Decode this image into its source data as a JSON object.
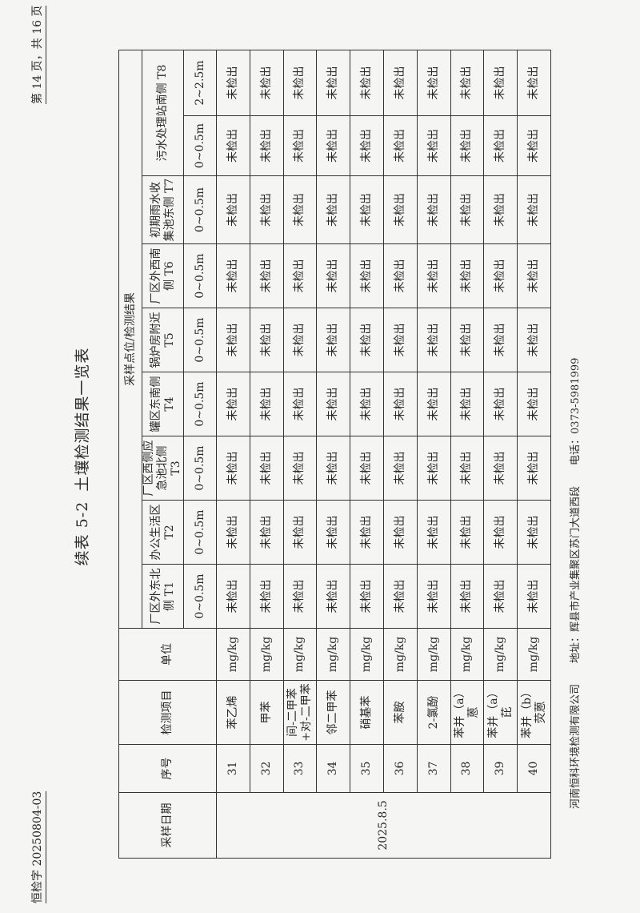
{
  "header": {
    "doc_number": "恒检字 20250804-03",
    "page_info": "第 14 页，共 16 页"
  },
  "title": {
    "prefix": "续表 5-2",
    "text": "土壤检测结果一览表"
  },
  "table": {
    "col_date": "采样日期",
    "col_seq": "序号",
    "col_item": "检测项目",
    "col_unit": "单位",
    "group_header": "采样点位/检测结果",
    "points": [
      "厂区外东北侧 T1",
      "办公生活区 T2",
      "厂区西侧应急池北侧 T3",
      "罐区东南侧 T4",
      "锅炉房附近 T5",
      "厂区外西南侧 T6",
      "初期雨水收集池东侧 T7",
      "污水处理站南侧 T8"
    ],
    "depths": [
      "0~0.5m",
      "0~0.5m",
      "0~0.5m",
      "0~0.5m",
      "0~0.5m",
      "0~0.5m",
      "0~0.5m",
      "0~0.5m",
      "2~2.5m"
    ],
    "date": "2025.8.5",
    "rows": [
      {
        "seq": "31",
        "item": "苯乙烯",
        "unit": "mg/kg"
      },
      {
        "seq": "32",
        "item": "甲苯",
        "unit": "mg/kg"
      },
      {
        "seq": "33",
        "item": "间-二甲苯+对-二甲苯",
        "unit": "mg/kg"
      },
      {
        "seq": "34",
        "item": "邻二甲苯",
        "unit": "mg/kg"
      },
      {
        "seq": "35",
        "item": "硝基苯",
        "unit": "mg/kg"
      },
      {
        "seq": "36",
        "item": "苯胺",
        "unit": "mg/kg"
      },
      {
        "seq": "37",
        "item": "2-氯酚",
        "unit": "mg/kg"
      },
      {
        "seq": "38",
        "item": "苯并（a）蒽",
        "unit": "mg/kg"
      },
      {
        "seq": "39",
        "item": "苯并（a）芘",
        "unit": "mg/kg"
      },
      {
        "seq": "40",
        "item": "苯并（b）荧蒽",
        "unit": "mg/kg"
      }
    ],
    "result_value": "未检出"
  },
  "footer": {
    "company": "河南恒科环境检测有限公司",
    "address": "地址：辉县市产业集聚区苏门大道西段",
    "phone": "电话：0373-5981999"
  }
}
